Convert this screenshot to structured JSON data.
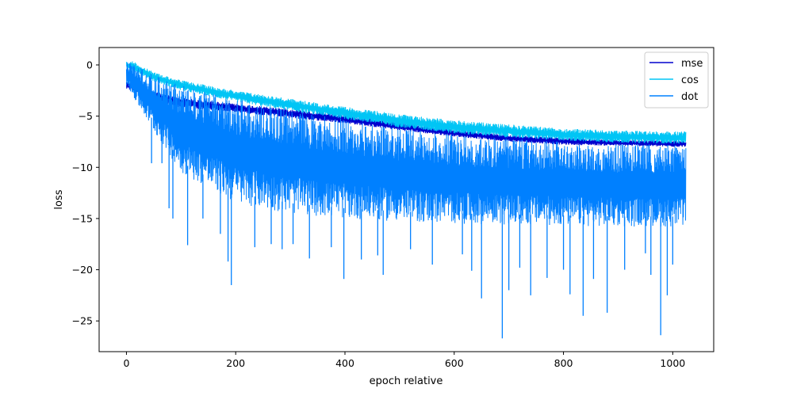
{
  "chart_data": {
    "type": "line",
    "title": "",
    "xlabel": "epoch relative",
    "ylabel": "loss",
    "xlim": [
      -50,
      1075
    ],
    "ylim": [
      -28.0,
      1.7
    ],
    "x_ticks": [
      0,
      200,
      400,
      600,
      800,
      1000
    ],
    "y_ticks": [
      0,
      -5,
      -10,
      -15,
      -20,
      -25
    ],
    "x_tick_labels": [
      "0",
      "200",
      "400",
      "600",
      "800",
      "1000"
    ],
    "y_tick_labels": [
      "0",
      "−5",
      "−10",
      "−15",
      "−20",
      "−25"
    ],
    "grid": false,
    "legend_position": "top-right",
    "series": [
      {
        "name": "mse",
        "color": "#0000cd",
        "x_range": [
          0,
          1024
        ],
        "envelope": {
          "x": [
            0,
            20,
            50,
            100,
            200,
            300,
            400,
            500,
            600,
            700,
            800,
            900,
            1000,
            1024
          ],
          "upper": [
            -1.5,
            -1.8,
            -2.6,
            -3.2,
            -3.8,
            -4.3,
            -4.9,
            -5.6,
            -6.3,
            -6.8,
            -7.1,
            -7.3,
            -7.4,
            -7.4
          ],
          "lower": [
            -2.4,
            -2.7,
            -3.6,
            -4.2,
            -4.6,
            -5.2,
            -5.7,
            -6.4,
            -7.0,
            -7.5,
            -7.8,
            -7.9,
            -8.0,
            -8.0
          ]
        }
      },
      {
        "name": "cos",
        "color": "#00c5f5",
        "x_range": [
          0,
          1024
        ],
        "envelope": {
          "x": [
            0,
            10,
            50,
            100,
            200,
            300,
            400,
            500,
            600,
            700,
            800,
            900,
            1000,
            1024
          ],
          "upper": [
            0.3,
            0.4,
            -0.7,
            -1.5,
            -2.5,
            -3.3,
            -4.1,
            -4.8,
            -5.4,
            -5.8,
            -6.2,
            -6.4,
            -6.5,
            -6.5
          ],
          "lower": [
            -0.4,
            -0.5,
            -1.6,
            -2.5,
            -3.6,
            -4.5,
            -5.3,
            -6.1,
            -6.7,
            -7.1,
            -7.4,
            -7.6,
            -7.7,
            -7.7
          ]
        }
      },
      {
        "name": "dot",
        "color": "#0080ff",
        "x_range": [
          0,
          1024
        ],
        "envelope": {
          "x": [
            0,
            10,
            50,
            100,
            200,
            300,
            400,
            500,
            600,
            700,
            800,
            900,
            1000,
            1024
          ],
          "upper": [
            0.3,
            0.2,
            -1.0,
            -2.0,
            -3.3,
            -4.4,
            -5.3,
            -6.2,
            -6.8,
            -7.2,
            -7.5,
            -7.7,
            -7.8,
            -7.8
          ],
          "lower": [
            -2.0,
            -3.0,
            -6.5,
            -10.5,
            -13.5,
            -14.5,
            -15.0,
            -15.3,
            -15.5,
            -15.6,
            -15.7,
            -15.8,
            -15.8,
            -15.8
          ]
        },
        "spikes": [
          [
            46,
            -9.6
          ],
          [
            65,
            -9.6
          ],
          [
            78,
            -14.0
          ],
          [
            85,
            -15.0
          ],
          [
            112,
            -17.6
          ],
          [
            140,
            -15.0
          ],
          [
            172,
            -16.5
          ],
          [
            186,
            -19.2
          ],
          [
            192,
            -21.5
          ],
          [
            235,
            -17.8
          ],
          [
            265,
            -17.5
          ],
          [
            285,
            -18.0
          ],
          [
            305,
            -17.5
          ],
          [
            335,
            -18.9
          ],
          [
            375,
            -17.8
          ],
          [
            398,
            -20.9
          ],
          [
            430,
            -19.0
          ],
          [
            460,
            -18.6
          ],
          [
            470,
            -20.5
          ],
          [
            520,
            -18.0
          ],
          [
            560,
            -19.5
          ],
          [
            615,
            -18.5
          ],
          [
            632,
            -20.1
          ],
          [
            650,
            -22.8
          ],
          [
            688,
            -26.7
          ],
          [
            700,
            -22.0
          ],
          [
            720,
            -19.8
          ],
          [
            740,
            -22.5
          ],
          [
            770,
            -20.8
          ],
          [
            800,
            -20.0
          ],
          [
            812,
            -22.4
          ],
          [
            836,
            -24.5
          ],
          [
            855,
            -20.9
          ],
          [
            880,
            -24.2
          ],
          [
            912,
            -20.0
          ],
          [
            950,
            -18.4
          ],
          [
            960,
            -20.5
          ],
          [
            978,
            -26.4
          ],
          [
            990,
            -22.5
          ],
          [
            1000,
            -19.5
          ]
        ]
      }
    ]
  }
}
